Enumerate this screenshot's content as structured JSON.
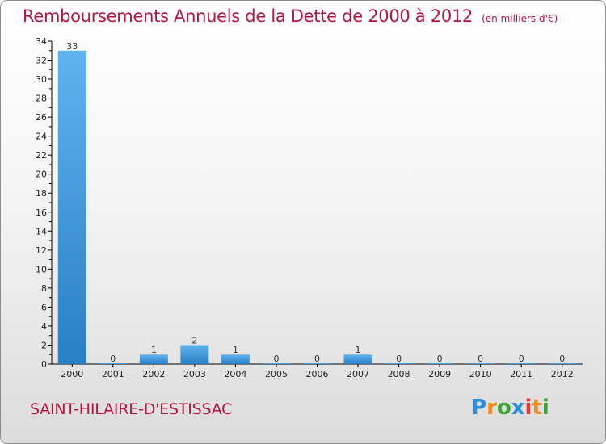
{
  "title": "Remboursements Annuels de la Dette de 2000 à 2012",
  "subtitle": "(en milliers d'€)",
  "commune": "SAINT-HILAIRE-D'ESTISSAC",
  "logo": "Proxiti",
  "colors": {
    "bar_top": "#5fb3ee",
    "bar_bottom": "#2a7fc4",
    "title": "#b1173f"
  },
  "chart_data": {
    "type": "bar",
    "title": "Remboursements Annuels de la Dette de 2000 à 2012",
    "ylabel": "en milliers d'€",
    "xlabel": "",
    "categories": [
      "2000",
      "2001",
      "2002",
      "2003",
      "2004",
      "2005",
      "2006",
      "2007",
      "2008",
      "2009",
      "2010",
      "2011",
      "2012"
    ],
    "values": [
      33,
      0,
      1,
      2,
      1,
      0,
      0,
      1,
      0,
      0,
      0,
      0,
      0
    ],
    "ylim": [
      0,
      34
    ],
    "yticks": [
      0,
      2,
      4,
      6,
      8,
      10,
      12,
      14,
      16,
      18,
      20,
      22,
      24,
      26,
      28,
      30,
      32,
      34
    ],
    "grid": false
  }
}
